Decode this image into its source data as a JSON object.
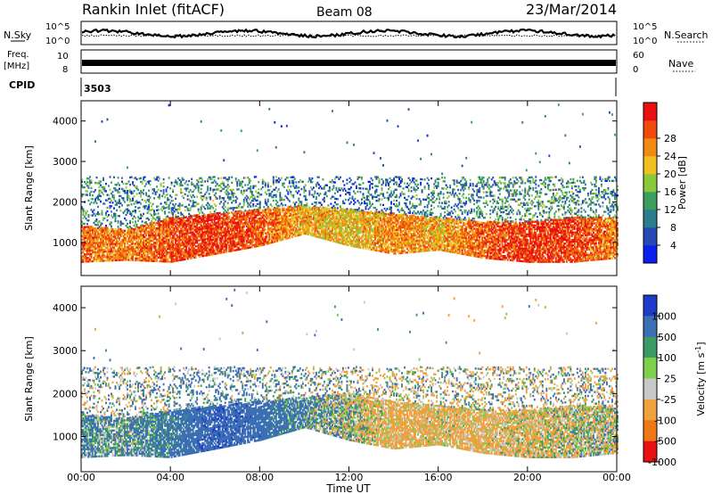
{
  "header": {
    "station": "Rankin Inlet (fitACF)",
    "beam": "Beam 08",
    "date": "23/Mar/2014"
  },
  "status_panels": {
    "nsky": {
      "label": "N.Sky",
      "ticks": [
        "10^5",
        "10^0"
      ]
    },
    "nsearch": {
      "label": "N.Search",
      "ticks": [
        "10^5",
        "10^0"
      ]
    },
    "freq": {
      "label_line1": "Freq.",
      "label_line2": "[MHz]",
      "ticks": [
        "10",
        "8"
      ]
    },
    "nave": {
      "label": "Nave",
      "ticks": [
        "60",
        "0"
      ]
    },
    "cpid": {
      "label": "CPID",
      "value": "3503"
    }
  },
  "chart_data": [
    {
      "type": "heatmap",
      "name": "Power",
      "ylabel": "Slant Range [km]",
      "xlabel": "Time UT",
      "x_ticks": [
        "00:00",
        "04:00",
        "08:00",
        "12:00",
        "16:00",
        "20:00",
        "00:00"
      ],
      "xlim_hours": [
        0,
        24
      ],
      "y_ticks": [
        1000,
        2000,
        3000,
        4000
      ],
      "ylim": [
        180,
        4500
      ],
      "colorbar": {
        "label": "Power [dB]",
        "ticks": [
          "4",
          "8",
          "12",
          "16",
          "20",
          "24",
          "28"
        ],
        "range": [
          0,
          30
        ],
        "colors": [
          "#0a1ef0",
          "#2849b4",
          "#2c7d8c",
          "#3a9e5e",
          "#8cc83c",
          "#f0c020",
          "#f08a14",
          "#f04a0c",
          "#e81010"
        ]
      },
      "main_band": [
        {
          "t": 0,
          "low": 500,
          "high": 1400,
          "value": 24
        },
        {
          "t": 2,
          "low": 550,
          "high": 1300,
          "value": 22
        },
        {
          "t": 4,
          "low": 500,
          "high": 1600,
          "value": 25
        },
        {
          "t": 6,
          "low": 700,
          "high": 1700,
          "value": 27
        },
        {
          "t": 8,
          "low": 900,
          "high": 1800,
          "value": 24
        },
        {
          "t": 10,
          "low": 1200,
          "high": 1900,
          "value": 20
        },
        {
          "t": 12,
          "low": 900,
          "high": 1800,
          "value": 18
        },
        {
          "t": 14,
          "low": 700,
          "high": 1700,
          "value": 22
        },
        {
          "t": 16,
          "low": 800,
          "high": 1600,
          "value": 20
        },
        {
          "t": 18,
          "low": 600,
          "high": 1500,
          "value": 24
        },
        {
          "t": 20,
          "low": 500,
          "high": 1500,
          "value": 27
        },
        {
          "t": 22,
          "low": 500,
          "high": 1600,
          "value": 26
        },
        {
          "t": 24,
          "low": 600,
          "high": 1600,
          "value": 22
        }
      ]
    },
    {
      "type": "heatmap",
      "name": "Velocity",
      "ylabel": "Slant Range [km]",
      "xlabel": "Time UT",
      "x_ticks": [
        "00:00",
        "04:00",
        "08:00",
        "12:00",
        "16:00",
        "20:00",
        "00:00"
      ],
      "xlim_hours": [
        0,
        24
      ],
      "y_ticks": [
        1000,
        2000,
        3000,
        4000
      ],
      "ylim": [
        180,
        4500
      ],
      "colorbar": {
        "label": "Velocity [m s^-1]",
        "ticks": [
          "1000",
          "500",
          "100",
          "25",
          "-25",
          "-100",
          "-500",
          "-1000"
        ],
        "colors": [
          "#1e3cc8",
          "#3c6eb4",
          "#3c9a64",
          "#7cd04c",
          "#c8c8c8",
          "#f0a03c",
          "#f07814",
          "#e81010"
        ]
      },
      "main_band": [
        {
          "t": 0,
          "low": 500,
          "high": 1500,
          "value": 100
        },
        {
          "t": 2,
          "low": 550,
          "high": 1400,
          "value": 60
        },
        {
          "t": 4,
          "low": 500,
          "high": 1600,
          "value": 200
        },
        {
          "t": 6,
          "low": 700,
          "high": 1700,
          "value": 400
        },
        {
          "t": 8,
          "low": 900,
          "high": 1800,
          "value": 300
        },
        {
          "t": 10,
          "low": 1200,
          "high": 1900,
          "value": 100
        },
        {
          "t": 12,
          "low": 900,
          "high": 2000,
          "value": -20
        },
        {
          "t": 14,
          "low": 700,
          "high": 1800,
          "value": -200
        },
        {
          "t": 16,
          "low": 800,
          "high": 1700,
          "value": -150
        },
        {
          "t": 18,
          "low": 600,
          "high": 1600,
          "value": -180
        },
        {
          "t": 20,
          "low": 500,
          "high": 1600,
          "value": -120
        },
        {
          "t": 22,
          "low": 500,
          "high": 1700,
          "value": -60
        },
        {
          "t": 24,
          "low": 600,
          "high": 1700,
          "value": -40
        }
      ]
    }
  ]
}
